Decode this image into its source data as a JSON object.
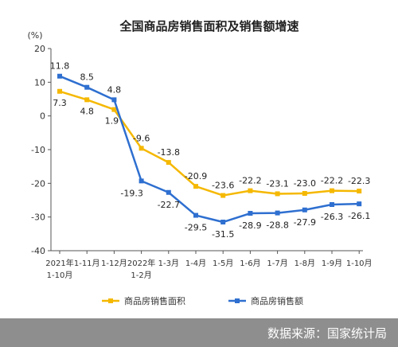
{
  "chart_data": {
    "type": "line",
    "title": "全国商品房销售面积及销售额增速",
    "ylabel": "(%)",
    "ylim": [
      -40,
      20
    ],
    "yticks": [
      20,
      10,
      0,
      -10,
      -20,
      -30,
      -40
    ],
    "grid": false,
    "legend_position": "bottom",
    "categories": [
      [
        "2021年",
        "1-10月"
      ],
      [
        "1-11月"
      ],
      [
        "1-12月"
      ],
      [
        "2022年",
        "1-2月"
      ],
      [
        "1-3月"
      ],
      [
        "1-4月"
      ],
      [
        "1-5月"
      ],
      [
        "1-6月"
      ],
      [
        "1-7月"
      ],
      [
        "1-8月"
      ],
      [
        "1-9月"
      ],
      [
        "1-10月"
      ]
    ],
    "series": [
      {
        "name": "商品房销售面积",
        "color": "#f5b800",
        "values": [
          7.3,
          4.8,
          1.9,
          -9.6,
          -13.8,
          -20.9,
          -23.6,
          -22.2,
          -23.1,
          -23.0,
          -22.2,
          -22.3
        ],
        "labels": [
          "7.3",
          "4.8",
          "1.9",
          "-9.6",
          "-13.8",
          "-20.9",
          "-23.6",
          "-22.2",
          "-23.1",
          "-23.0",
          "-22.2",
          "-22.3"
        ]
      },
      {
        "name": "商品房销售额",
        "color": "#2e6fd0",
        "values": [
          11.8,
          8.5,
          4.8,
          -19.3,
          -22.7,
          -29.5,
          -31.5,
          -28.9,
          -28.8,
          -27.9,
          -26.3,
          -26.1
        ],
        "labels": [
          "11.8",
          "8.5",
          "4.8",
          "-19.3",
          "-22.7",
          "-29.5",
          "-31.5",
          "-28.9",
          "-28.8",
          "-27.9",
          "-26.3",
          "-26.1"
        ]
      }
    ]
  },
  "source": "数据来源：国家统计局"
}
